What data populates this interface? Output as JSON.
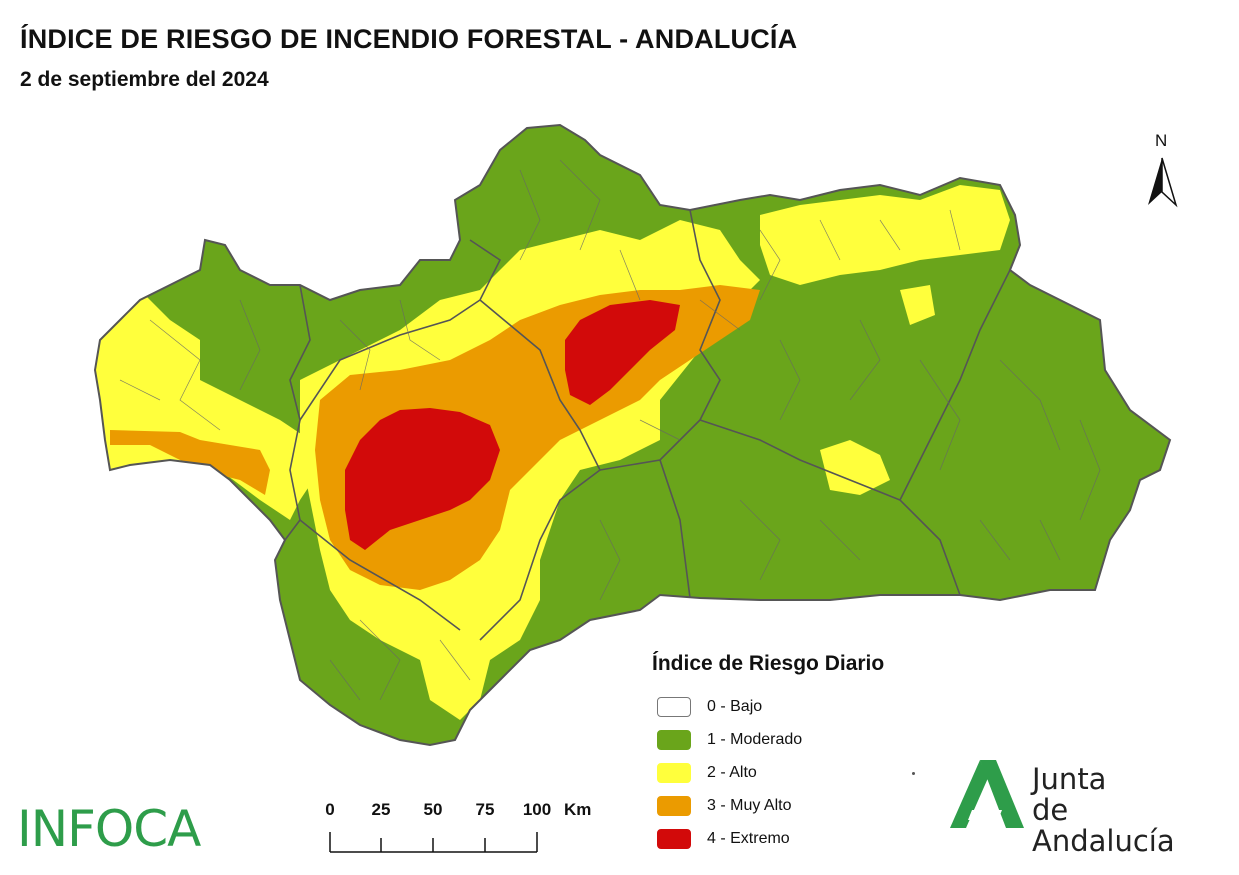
{
  "header": {
    "title": "ÍNDICE DE RIESGO DE INCENDIO FORESTAL - ANDALUCÍA",
    "date": "2 de septiembre del 2024"
  },
  "north_arrow": {
    "label": "N",
    "icon": "north-arrow-icon"
  },
  "legend": {
    "title": "Índice de Riesgo Diario",
    "items": [
      {
        "label": "0 - Bajo",
        "color": "#ffffff"
      },
      {
        "label": "1 - Moderado",
        "color": "#6aa51b"
      },
      {
        "label": "2 - Alto",
        "color": "#ffff3c"
      },
      {
        "label": "3 - Muy Alto",
        "color": "#eb9b00"
      },
      {
        "label": "4 - Extremo",
        "color": "#d20a0a"
      }
    ]
  },
  "scale": {
    "ticks": [
      "0",
      "25",
      "50",
      "75",
      "100"
    ],
    "unit": "Km"
  },
  "logos": {
    "infoca": "INFOCA",
    "junta_line1": "Junta",
    "junta_line2": "de Andalucía",
    "junta_color": "#2e9d4a"
  },
  "map_colors": {
    "moderado": "#6aa51b",
    "alto": "#ffff3c",
    "muy_alto": "#eb9b00",
    "extremo": "#d20a0a",
    "borders": "#555555"
  }
}
